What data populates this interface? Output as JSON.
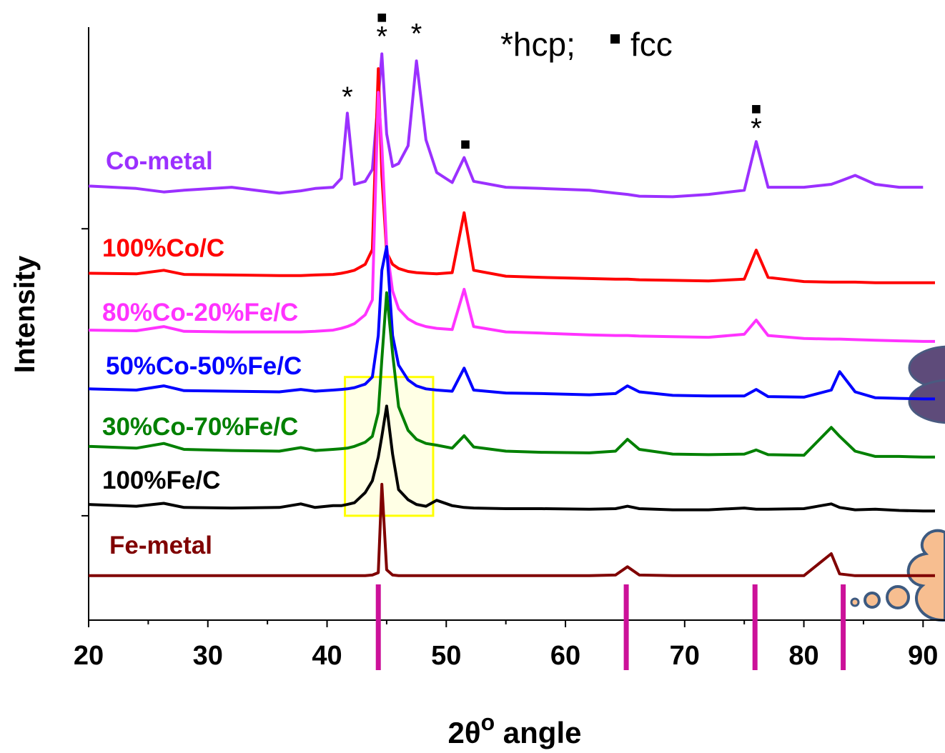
{
  "chart_data": {
    "type": "line",
    "xlabel": {
      "main": "2θ",
      "sup": "o",
      "rest": " angle"
    },
    "ylabel": "Intensity",
    "legend_text": [
      "*hcp;",
      "fcc"
    ],
    "x": [
      20,
      24,
      26.3,
      28,
      32,
      36,
      37.8,
      39,
      40.5,
      41.2,
      41.7,
      42.3,
      43.2,
      43.8,
      44.3,
      44.6,
      45,
      45.5,
      46,
      46.8,
      47.5,
      48.3,
      49.2,
      50.5,
      51.5,
      52.3,
      55,
      58,
      62,
      64.2,
      65.2,
      66.2,
      69,
      72,
      75,
      76,
      77,
      80,
      82.3,
      83,
      84.3,
      86,
      88,
      90,
      91
    ],
    "series": [
      {
        "name": "Co-metal",
        "color": "#9b30ff",
        "values": [
          73.2,
          72.8,
          72.2,
          72.5,
          73,
          72,
          72.4,
          72.8,
          73,
          74.5,
          85.5,
          73.5,
          74,
          76,
          88,
          95.5,
          82,
          76.5,
          77,
          80,
          94.3,
          81,
          75.5,
          73.8,
          78,
          74,
          73,
          72.8,
          72.5,
          72,
          71.8,
          71.5,
          71.4,
          71.8,
          72.5,
          80.7,
          73,
          73,
          73.5,
          74,
          75,
          73.5,
          73,
          73,
          null
        ]
      },
      {
        "name": "100%Co/C",
        "color": "#ff0000",
        "values": [
          58.5,
          58.4,
          59,
          58.3,
          58.2,
          58.1,
          58.1,
          58.2,
          58.3,
          58.5,
          58.7,
          59,
          60,
          62.5,
          93,
          75,
          62,
          60,
          59.3,
          58.8,
          58.6,
          58.5,
          58.4,
          58.6,
          68.7,
          59,
          58,
          57.8,
          57.6,
          57.5,
          57.5,
          57.4,
          57.3,
          57.2,
          57.5,
          62.4,
          57.8,
          57.1,
          57,
          57,
          57,
          56.9,
          56.9,
          56.9,
          56.9
        ]
      },
      {
        "name": "80%Co-20%Fe/C",
        "color": "#ff33ff",
        "values": [
          48.9,
          48.8,
          49.5,
          48.7,
          48.6,
          48.6,
          48.6,
          48.7,
          48.9,
          49.2,
          49.5,
          50,
          51.5,
          54,
          89,
          80,
          63,
          55.5,
          52.5,
          50.8,
          50,
          49.5,
          49.2,
          49,
          55.8,
          49.5,
          48.6,
          48.4,
          48.1,
          48,
          48,
          47.9,
          47.8,
          47.7,
          48.2,
          50.6,
          48,
          47.5,
          47.4,
          47.4,
          47.3,
          47.2,
          47.1,
          47,
          47
        ]
      },
      {
        "name": "50%Co-50%Fe/C",
        "color": "#0000ff",
        "values": [
          39,
          38.8,
          39.5,
          38.7,
          38.6,
          38.5,
          38.9,
          38.6,
          38.8,
          38.9,
          39,
          39.2,
          39.8,
          41,
          48,
          59,
          63,
          48,
          43,
          40.5,
          39.5,
          39,
          38.8,
          38.6,
          42.5,
          38.8,
          38.3,
          38.2,
          38,
          38.2,
          39.5,
          38.5,
          37.9,
          37.8,
          37.8,
          38.9,
          37.7,
          37.6,
          38.8,
          41.9,
          38.5,
          37.5,
          37.4,
          37.3,
          37.3
        ]
      },
      {
        "name": "30%Co-70%Fe/C",
        "color": "#008000",
        "values": [
          29.3,
          29,
          29.8,
          28.8,
          28.6,
          28.5,
          29.1,
          28.6,
          28.8,
          28.9,
          29,
          29.3,
          30,
          31,
          35,
          44,
          55.2,
          45,
          36,
          32,
          30.5,
          29.8,
          29.5,
          29,
          31.1,
          29.2,
          28.5,
          28.3,
          28.2,
          28.5,
          30.5,
          28.8,
          28,
          27.9,
          28,
          28.7,
          27.9,
          27.8,
          32.5,
          31,
          28.5,
          27.6,
          27.6,
          27.5,
          27.5
        ]
      },
      {
        "name": "100%Fe/C",
        "color": "#000000",
        "values": [
          19.5,
          19.2,
          19.7,
          19,
          18.9,
          19,
          19.6,
          19,
          19.3,
          19.3,
          19.5,
          19.8,
          21.5,
          23.5,
          27.5,
          31,
          36.1,
          28,
          22,
          20.3,
          19.5,
          19.2,
          20.2,
          19.3,
          19,
          18.9,
          18.8,
          18.8,
          18.7,
          18.8,
          19.2,
          18.8,
          18.6,
          18.6,
          18.9,
          18.7,
          18.7,
          18.8,
          19.6,
          19,
          18.6,
          18.7,
          18.5,
          18.4,
          18.4
        ]
      },
      {
        "name": "Fe-metal",
        "color": "#800000",
        "values": [
          7.5,
          7.5,
          7.5,
          7.5,
          7.5,
          7.5,
          7.5,
          7.5,
          7.5,
          7.5,
          7.5,
          7.5,
          7.5,
          7.6,
          8,
          22.9,
          8.5,
          7.6,
          7.5,
          7.5,
          7.5,
          7.5,
          7.5,
          7.5,
          7.5,
          7.5,
          7.5,
          7.5,
          7.5,
          7.6,
          9,
          7.6,
          7.5,
          7.5,
          7.5,
          7.5,
          7.5,
          7.5,
          11.2,
          7.8,
          7.5,
          7.5,
          7.5,
          7.5,
          7.5
        ]
      }
    ],
    "annotations": [
      {
        "text": "*",
        "x": 41.7,
        "y": 88.3
      },
      {
        "text": "*",
        "x": 44.6,
        "y": 98.5
      },
      {
        "text": "■",
        "x": 44.6,
        "y": 102.4
      },
      {
        "text": "*",
        "x": 47.5,
        "y": 99
      },
      {
        "text": "■",
        "x": 51.6,
        "y": 81
      },
      {
        "text": "*",
        "x": 76,
        "y": 83
      },
      {
        "text": "■",
        "x": 76,
        "y": 87
      }
    ],
    "reference_lines": [
      44.3,
      65.1,
      75.9,
      83.3
    ],
    "reference_color": "#cc1199",
    "highlight_box": {
      "x": [
        41.5,
        48.9
      ],
      "y": [
        17.6,
        41
      ],
      "color": "#ffff00"
    },
    "xlim": [
      20,
      91
    ],
    "ylim": [
      0,
      100
    ],
    "xticks": [
      20,
      30,
      40,
      50,
      60,
      70,
      80,
      90
    ],
    "xminor_ticks": [
      25,
      35,
      45,
      55,
      65,
      75,
      85
    ],
    "yticks": [
      17.6,
      66
    ]
  }
}
